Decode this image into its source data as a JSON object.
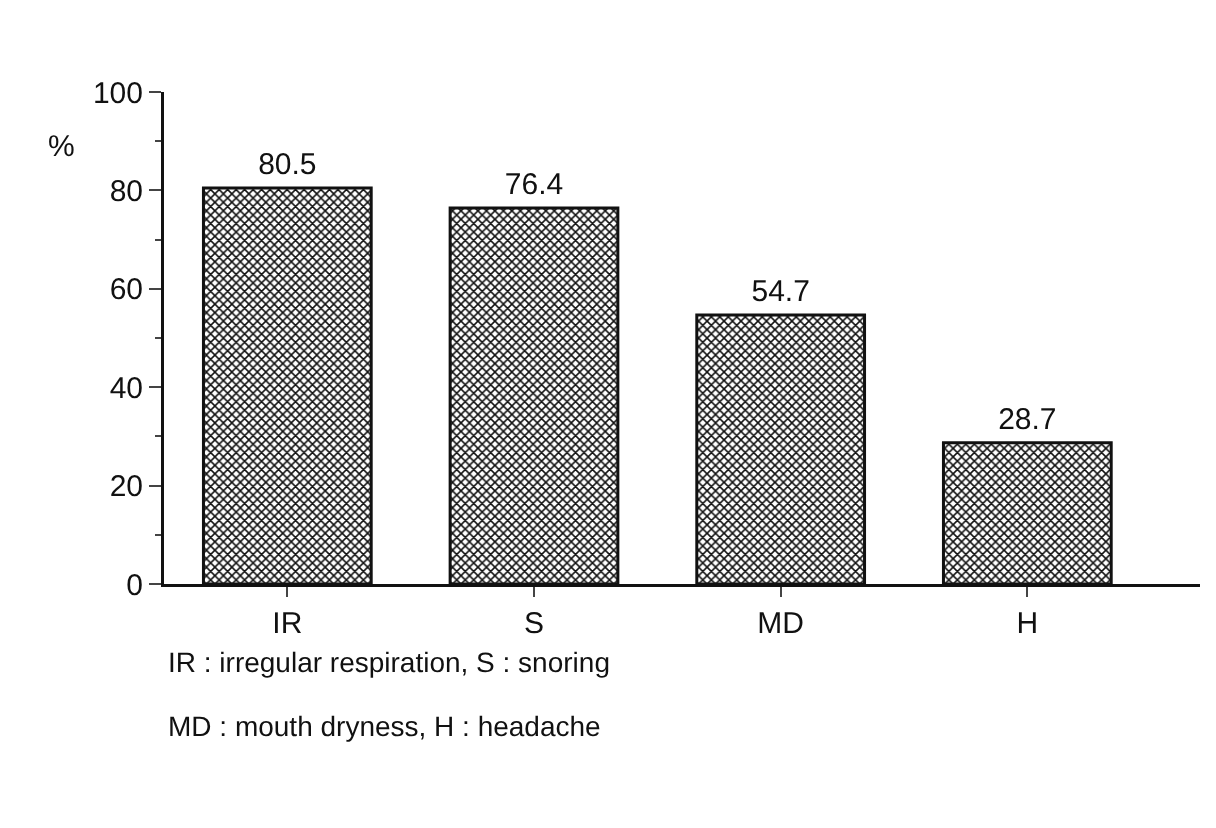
{
  "chart_data": {
    "type": "bar",
    "ylabel": "%",
    "categories": [
      "IR",
      "S",
      "MD",
      "H"
    ],
    "values": [
      80.5,
      76.4,
      54.7,
      28.7
    ],
    "color": "#111111",
    "data_labels": true,
    "ylim": [
      0,
      100
    ],
    "yticks": [
      0,
      20,
      40,
      60,
      80,
      100
    ],
    "grid": false,
    "legend": false,
    "annotations": [
      "IR : irregular respiration, S : snoring",
      "MD : mouth dryness, H : headache"
    ]
  }
}
